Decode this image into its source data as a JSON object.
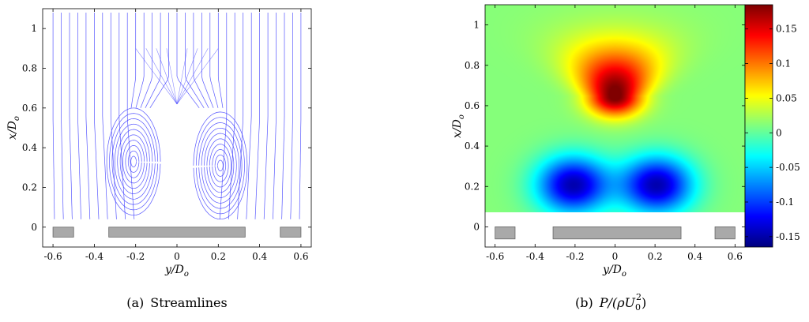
{
  "chart_data": [
    {
      "type": "streamline",
      "caption_label": "(a)",
      "caption_text": "Streamlines",
      "xlabel": "y/D",
      "xlabel_sub": "o",
      "ylabel": "x/D",
      "ylabel_sub": "o",
      "xlim": [
        -0.65,
        0.65
      ],
      "ylim": [
        -0.1,
        1.1
      ],
      "xticks": [
        "-0.6",
        "-0.4",
        "-0.2",
        "0",
        "0.2",
        "0.4",
        "0.6"
      ],
      "xtick_values": [
        -0.6,
        -0.4,
        -0.2,
        0,
        0.2,
        0.4,
        0.6
      ],
      "yticks": [
        "0",
        "0.2",
        "0.4",
        "0.6",
        "0.8",
        "1"
      ],
      "ytick_values": [
        0,
        0.2,
        0.4,
        0.6,
        0.8,
        1
      ],
      "vortices": [
        {
          "center": [
            -0.21,
            0.33
          ]
        },
        {
          "center": [
            0.21,
            0.31
          ]
        }
      ],
      "stagnation_point": [
        0,
        0.62
      ],
      "wall_blocks": [
        [
          -0.6,
          -0.5
        ],
        [
          -0.33,
          0.33
        ],
        [
          0.5,
          0.6
        ]
      ],
      "wall_band": [
        -0.05,
        0
      ],
      "line_color": "#3b3bff"
    },
    {
      "type": "heatmap",
      "caption_label": "(b)",
      "caption_text": "P/(ρU",
      "caption_sub": "0",
      "caption_sup": "2",
      "xlabel": "y/D",
      "xlabel_sub": "o",
      "ylabel": "x/D",
      "ylabel_sub": "o",
      "xlim": [
        -0.65,
        0.65
      ],
      "ylim": [
        -0.1,
        1.1
      ],
      "xticks": [
        "-0.6",
        "-0.4",
        "-0.2",
        "0",
        "0.2",
        "0.4",
        "0.6"
      ],
      "xtick_values": [
        -0.6,
        -0.4,
        -0.2,
        0,
        0.2,
        0.4,
        0.6
      ],
      "yticks": [
        "0",
        "0.2",
        "0.4",
        "0.6",
        "0.8",
        "1"
      ],
      "ytick_values": [
        0,
        0.2,
        0.4,
        0.6,
        0.8,
        1
      ],
      "data_ylim": [
        0.1,
        1.1
      ],
      "features": [
        {
          "kind": "high",
          "center": [
            0,
            0.66
          ],
          "peak": 0.18
        },
        {
          "kind": "low",
          "center": [
            -0.21,
            0.23
          ],
          "peak": -0.16
        },
        {
          "kind": "low",
          "center": [
            0.21,
            0.23
          ],
          "peak": -0.16
        }
      ],
      "colorbar": {
        "colormap": "jet",
        "range": [
          -0.165,
          0.185
        ],
        "ticks": [
          "0.15",
          "0.1",
          "0.05",
          "0",
          "-0.05",
          "-0.1",
          "-0.15"
        ],
        "tick_values": [
          0.15,
          0.1,
          0.05,
          0,
          -0.05,
          -0.1,
          -0.15
        ]
      },
      "wall_blocks": [
        [
          -0.6,
          -0.5
        ],
        [
          -0.31,
          0.33
        ],
        [
          0.5,
          0.6
        ]
      ],
      "wall_band": [
        -0.06,
        0
      ]
    }
  ]
}
